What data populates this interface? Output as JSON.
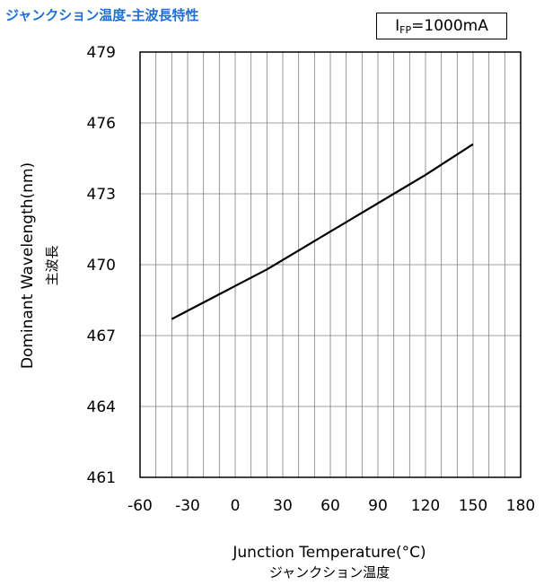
{
  "header": {
    "title": "ジャンクション温度-主波長特性",
    "condition_main": "I",
    "condition_sub": "FP",
    "condition_value": "=1000mA"
  },
  "chart_data": {
    "type": "line",
    "title": "ジャンクション温度-主波長特性",
    "xlabel": "Junction Temperature(°C)",
    "xlabel_sub": "ジャンクション温度",
    "ylabel": "Dominant Wavelength(nm)",
    "ylabel_sub": "主波長",
    "xlim": [
      -60,
      180
    ],
    "ylim": [
      461,
      479
    ],
    "x_ticks": [
      -60,
      -30,
      0,
      30,
      60,
      90,
      120,
      150,
      180
    ],
    "y_ticks": [
      461,
      464,
      467,
      470,
      473,
      476,
      479
    ],
    "x_minor_step": 10,
    "grid": true,
    "colors": {
      "line": "#000000",
      "grid": "#7f7f7f"
    },
    "series": [
      {
        "x": [
          -40,
          -20,
          0,
          20,
          40,
          60,
          80,
          100,
          120,
          150
        ],
        "y": [
          467.7,
          468.4,
          469.1,
          469.8,
          470.6,
          471.4,
          472.2,
          473.0,
          473.8,
          475.1
        ]
      }
    ]
  }
}
